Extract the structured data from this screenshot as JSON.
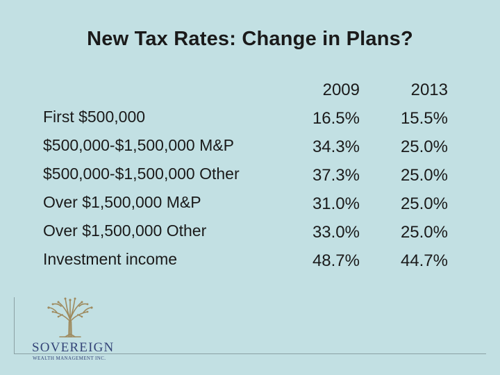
{
  "title": "New Tax Rates: Change in Plans?",
  "table": {
    "columns": [
      "2009",
      "2013"
    ],
    "rows": [
      {
        "label": "First $500,000",
        "rate_2009": "16.5%",
        "rate_2013": "15.5%"
      },
      {
        "label": "$500,000-$1,500,000 M&P",
        "rate_2009": "34.3%",
        "rate_2013": "25.0%"
      },
      {
        "label": "$500,000-$1,500,000 Other",
        "rate_2009": "37.3%",
        "rate_2013": "25.0%"
      },
      {
        "label": "Over $1,500,000 M&P",
        "rate_2009": "31.0%",
        "rate_2013": "25.0%"
      },
      {
        "label": "Over $1,500,000 Other",
        "rate_2009": "33.0%",
        "rate_2013": "25.0%"
      },
      {
        "label": "Investment income",
        "rate_2009": "48.7%",
        "rate_2013": "44.7%"
      }
    ]
  },
  "logo": {
    "name": "SOVEREIGN",
    "tagline": "WEALTH MANAGEMENT INC.",
    "icon": "tree-icon",
    "tree_color": "#9e8a5e",
    "text_color": "#334477"
  },
  "colors": {
    "background": "#c2e0e3",
    "text": "#1a1a1a"
  }
}
